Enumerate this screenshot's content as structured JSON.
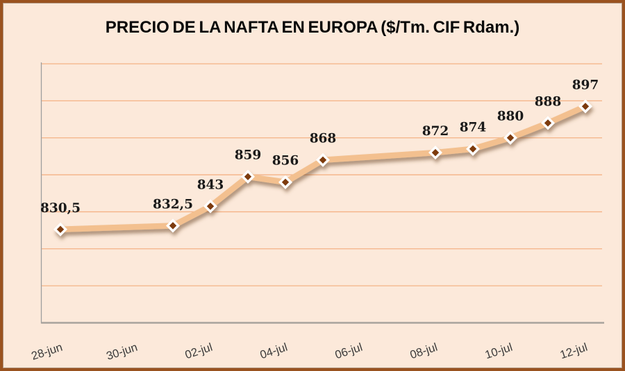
{
  "window": {
    "background_color": "#fce9da",
    "border_color": "#9a521f"
  },
  "chart_data": {
    "type": "line",
    "title": "PRECIO DE LA NAFTA EN EUROPA ($/Tm. CIF Rdam.)",
    "series": [
      {
        "points": [
          {
            "x_day": 0,
            "value": 830.5,
            "label": "830,5"
          },
          {
            "x_day": 3,
            "value": 832.5,
            "label": "832,5"
          },
          {
            "x_day": 4,
            "value": 843,
            "label": "843"
          },
          {
            "x_day": 5,
            "value": 859,
            "label": "859"
          },
          {
            "x_day": 6,
            "value": 856,
            "label": "856"
          },
          {
            "x_day": 7,
            "value": 868,
            "label": "868"
          },
          {
            "x_day": 10,
            "value": 872,
            "label": "872"
          },
          {
            "x_day": 11,
            "value": 874,
            "label": "874"
          },
          {
            "x_day": 12,
            "value": 880,
            "label": "880"
          },
          {
            "x_day": 13,
            "value": 888,
            "label": "888"
          },
          {
            "x_day": 14,
            "value": 897,
            "label": "897"
          }
        ]
      }
    ],
    "x_ticks": [
      {
        "label": "28-jun",
        "x_day": 0
      },
      {
        "label": "30-jun",
        "x_day": 2
      },
      {
        "label": "02-jul",
        "x_day": 4
      },
      {
        "label": "04-jul",
        "x_day": 6
      },
      {
        "label": "06-jul",
        "x_day": 8
      },
      {
        "label": "08-jul",
        "x_day": 10
      },
      {
        "label": "10-jul",
        "x_day": 12
      },
      {
        "label": "12-jul",
        "x_day": 14
      }
    ],
    "y_axis": {
      "min": 780,
      "max": 920,
      "gridline_step": 20,
      "tick_labels_visible": false
    },
    "grid": true,
    "legend": "none",
    "data_labels_visible": true,
    "colors": {
      "line": "#f3c08f",
      "marker_fill": "#7d3a10",
      "marker_border": "#ffffff",
      "gridline": "#f4b285",
      "bottom_axis": "#a8a39c",
      "left_axis": "#9e9e9e",
      "data_label": "#191919",
      "tick_label": "#3a3a3a",
      "title": "#090909",
      "shadow": "#6f4a2a"
    }
  }
}
